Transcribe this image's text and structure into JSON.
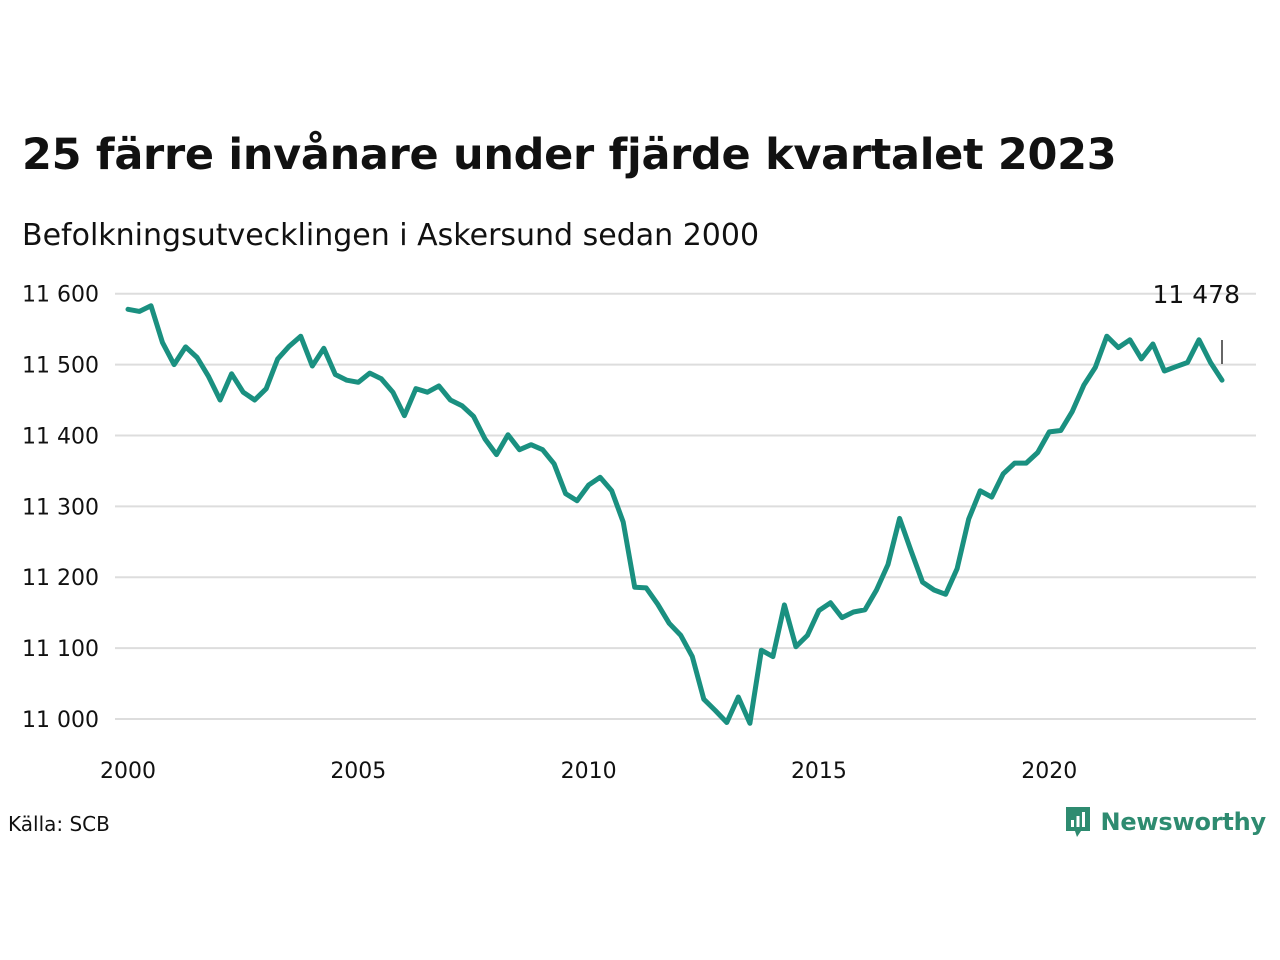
{
  "header": {
    "title": "25 färre invånare under fjärde kvartalet 2023",
    "subtitle": "Befolkningsutvecklingen i Askersund sedan 2000"
  },
  "footer": {
    "source": "Källa: SCB",
    "brand": "Newsworthy",
    "brand_icon": "bar-chart-speech-bubble-icon",
    "brand_color": "#2e8b70"
  },
  "colors": {
    "line": "#1a9080",
    "grid": "#dddddd",
    "marker": "#333333"
  },
  "chart_data": {
    "type": "line",
    "title": "25 färre invånare under fjärde kvartalet 2023",
    "subtitle": "Befolkningsutvecklingen i Askersund sedan 2000",
    "xlabel": "",
    "ylabel": "",
    "x_ticks": [
      2000,
      2005,
      2010,
      2015,
      2020
    ],
    "x_tick_labels": [
      "2000",
      "2005",
      "2010",
      "2015",
      "2020"
    ],
    "y_ticks": [
      11000,
      11100,
      11200,
      11300,
      11400,
      11500,
      11600
    ],
    "y_tick_labels": [
      "11 000",
      "11 100",
      "11 200",
      "11 300",
      "11 400",
      "11 500",
      "11 600"
    ],
    "ylim": [
      10990,
      11600
    ],
    "grid": "horizontal",
    "last_value": 11478,
    "last_value_label": "11 478",
    "series": [
      {
        "x": [
          "2000-Q1",
          "2000-Q2",
          "2000-Q3",
          "2000-Q4",
          "2001-Q1",
          "2001-Q2",
          "2001-Q3",
          "2001-Q4",
          "2002-Q1",
          "2002-Q2",
          "2002-Q3",
          "2002-Q4",
          "2003-Q1",
          "2003-Q2",
          "2003-Q3",
          "2003-Q4",
          "2004-Q1",
          "2004-Q2",
          "2004-Q3",
          "2004-Q4",
          "2005-Q1",
          "2005-Q2",
          "2005-Q3",
          "2005-Q4",
          "2006-Q1",
          "2006-Q2",
          "2006-Q3",
          "2006-Q4",
          "2007-Q1",
          "2007-Q2",
          "2007-Q3",
          "2007-Q4",
          "2008-Q1",
          "2008-Q2",
          "2008-Q3",
          "2008-Q4",
          "2009-Q1",
          "2009-Q2",
          "2009-Q3",
          "2009-Q4",
          "2010-Q1",
          "2010-Q2",
          "2010-Q3",
          "2010-Q4",
          "2011-Q1",
          "2011-Q2",
          "2011-Q3",
          "2011-Q4",
          "2012-Q1",
          "2012-Q2",
          "2012-Q3",
          "2012-Q4",
          "2013-Q1",
          "2013-Q2",
          "2013-Q3",
          "2013-Q4",
          "2014-Q1",
          "2014-Q2",
          "2014-Q3",
          "2014-Q4",
          "2015-Q1",
          "2015-Q2",
          "2015-Q3",
          "2015-Q4",
          "2016-Q1",
          "2016-Q2",
          "2016-Q3",
          "2016-Q4",
          "2017-Q1",
          "2017-Q2",
          "2017-Q3",
          "2017-Q4",
          "2018-Q1",
          "2018-Q2",
          "2018-Q3",
          "2018-Q4",
          "2019-Q1",
          "2019-Q2",
          "2019-Q3",
          "2019-Q4",
          "2020-Q1",
          "2020-Q2",
          "2020-Q3",
          "2020-Q4",
          "2021-Q1",
          "2021-Q2",
          "2021-Q3",
          "2021-Q4",
          "2022-Q1",
          "2022-Q2",
          "2022-Q3",
          "2022-Q4",
          "2023-Q1",
          "2023-Q2",
          "2023-Q3",
          "2023-Q4"
        ],
        "values": [
          11578,
          11575,
          11583,
          11531,
          11500,
          11525,
          11510,
          11483,
          11450,
          11487,
          11461,
          11450,
          11466,
          11508,
          11526,
          11540,
          11498,
          11523,
          11486,
          11478,
          11475,
          11488,
          11480,
          11461,
          11428,
          11466,
          11461,
          11470,
          11450,
          11442,
          11427,
          11395,
          11373,
          11401,
          11380,
          11387,
          11380,
          11360,
          11318,
          11308,
          11330,
          11341,
          11322,
          11278,
          11186,
          11185,
          11162,
          11135,
          11118,
          11088,
          11028,
          11012,
          10995,
          11031,
          10994,
          11097,
          11088,
          11161,
          11102,
          11118,
          11153,
          11164,
          11143,
          11151,
          11154,
          11182,
          11218,
          11283,
          11237,
          11193,
          11182,
          11176,
          11212,
          11282,
          11322,
          11313,
          11346,
          11361,
          11361,
          11376,
          11405,
          11407,
          11434,
          11471,
          11496,
          11540,
          11524,
          11535,
          11508,
          11529,
          11491,
          11497,
          11503,
          11535,
          11503,
          11478
        ]
      }
    ]
  }
}
